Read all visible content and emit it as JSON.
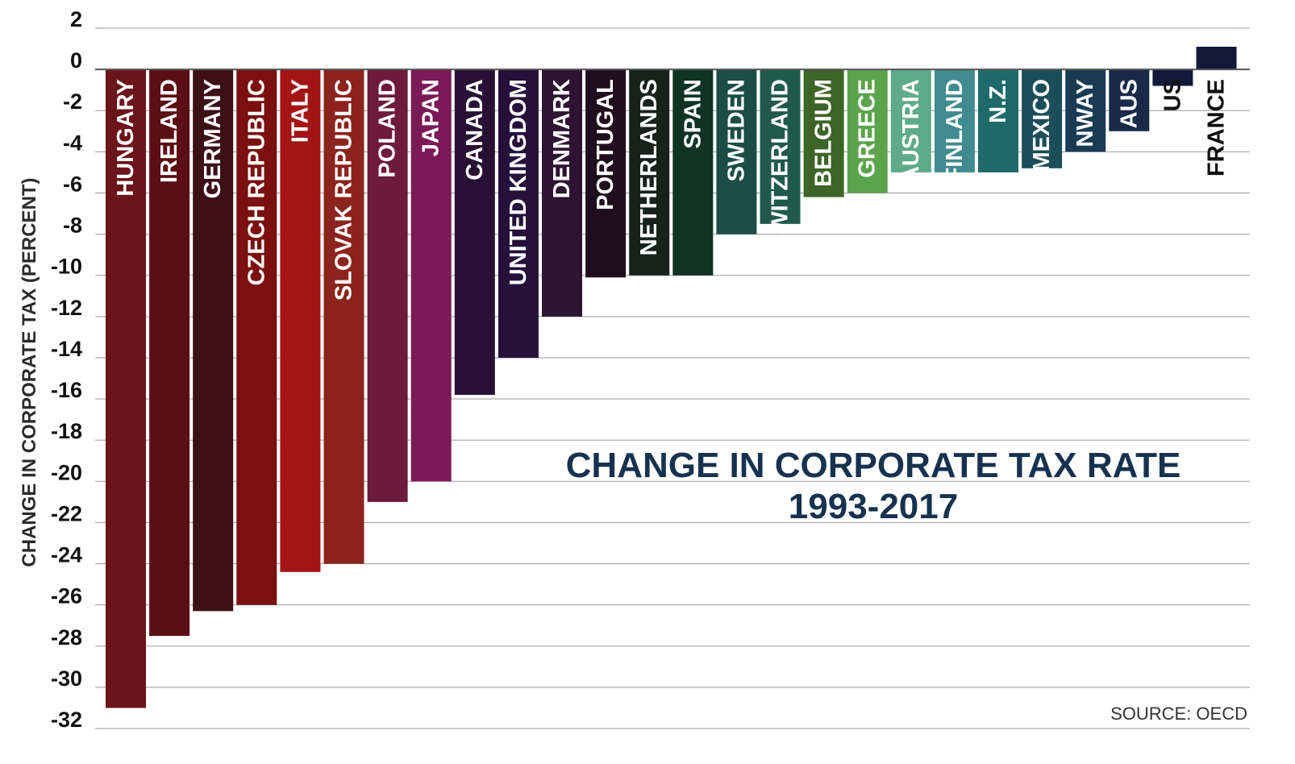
{
  "chart_data": {
    "type": "bar",
    "title": "CHANGE IN CORPORATE TAX RATE",
    "subtitle": "1993-2017",
    "ylabel": "CHANGE IN CORPORATE TAX (PERCENT)",
    "xlabel": "",
    "ylim": [
      -32,
      2
    ],
    "yticks": [
      2,
      0,
      -2,
      -4,
      -6,
      -8,
      -10,
      -12,
      -14,
      -16,
      -18,
      -20,
      -22,
      -24,
      -26,
      -28,
      -30,
      -32
    ],
    "grid": true,
    "source": "SOURCE: OECD",
    "categories": [
      "HUNGARY",
      "IRELAND",
      "GERMANY",
      "CZECH REPUBLIC",
      "ITALY",
      "SLOVAK REPUBLIC",
      "POLAND",
      "JAPAN",
      "CANADA",
      "UNITED KINGDOM",
      "DENMARK",
      "PORTUGAL",
      "NETHERLANDS",
      "SPAIN",
      "SWEDEN",
      "SWITZERLAND",
      "BELGIUM",
      "GREECE",
      "AUSTRIA",
      "FINLAND",
      "N.Z.",
      "MEXICO",
      "NWAY",
      "AUS",
      "US",
      "FRANCE"
    ],
    "values": [
      -31,
      -27.5,
      -26.3,
      -26,
      -24.4,
      -24,
      -21,
      -20,
      -15.8,
      -14,
      -12,
      -10.1,
      -10,
      -10,
      -8,
      -7.5,
      -6.2,
      -6,
      -5,
      -5,
      -5,
      -4.8,
      -4,
      -3,
      -0.8,
      1.1
    ],
    "colors": [
      "#6b1419",
      "#5b0f14",
      "#3d1016",
      "#7a1010",
      "#a31515",
      "#8c231d",
      "#6e1a3a",
      "#7c1957",
      "#271034",
      "#25103a",
      "#2e1433",
      "#200d1d",
      "#17221c",
      "#0f3325",
      "#1b4d46",
      "#215a4a",
      "#3e6427",
      "#5ca44c",
      "#5fa98c",
      "#3f8b8f",
      "#1e6a6b",
      "#1c4e5a",
      "#1a3b54",
      "#192a49",
      "#111a3b",
      "#111a38"
    ]
  }
}
